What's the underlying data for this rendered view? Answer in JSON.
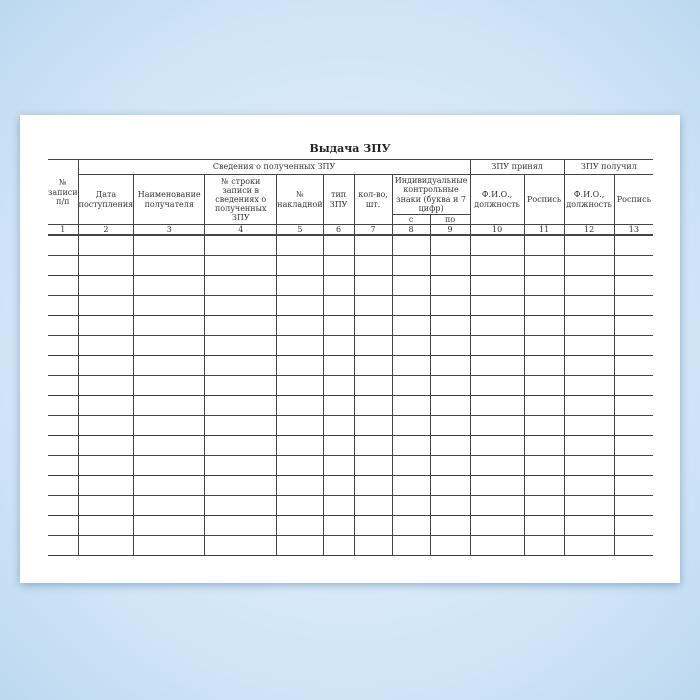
{
  "title": "Выдача ЗПУ",
  "headers": {
    "col1": "№ записи п/п",
    "group_received": "Сведения о полученных ЗПУ",
    "date": "Дата поступления",
    "recipient": "Наименование получателя",
    "line_no": "№ строки записи в сведениях о полученных ЗПУ",
    "invoice": "№ накладной",
    "type": "тип ЗПУ",
    "qty": "кол-во, шт.",
    "marks": "Индивидуальные контрольные знаки (буква и 7 цифр)",
    "from": "с",
    "to": "по",
    "group_accepted": "ЗПУ принял",
    "group_got": "ЗПУ получил",
    "fio1": "Ф.И.О., должность",
    "sign1": "Роспись",
    "fio2": "Ф.И.О., должность",
    "sign2": "Роспись"
  },
  "column_numbers": [
    "1",
    "2",
    "3",
    "4",
    "5",
    "6",
    "7",
    "8",
    "9",
    "10",
    "11",
    "12",
    "13"
  ]
}
